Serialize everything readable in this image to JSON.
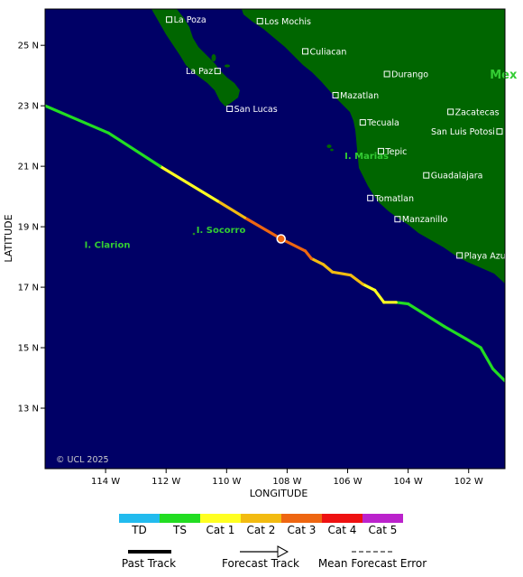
{
  "map": {
    "xlabel": "LONGITUDE",
    "ylabel": "LATITUDE",
    "copyright": "© UCL 2025",
    "lon_range": [
      -116,
      -100.8
    ],
    "lat_range": [
      11,
      26.2
    ],
    "x_ticks": [
      {
        "value": -114,
        "label": "114 W"
      },
      {
        "value": -112,
        "label": "112 W"
      },
      {
        "value": -110,
        "label": "110 W"
      },
      {
        "value": -108,
        "label": "108 W"
      },
      {
        "value": -106,
        "label": "106 W"
      },
      {
        "value": -104,
        "label": "104 W"
      },
      {
        "value": -102,
        "label": "102 W"
      }
    ],
    "y_ticks": [
      {
        "value": 25,
        "label": "25 N"
      },
      {
        "value": 23,
        "label": "23 N"
      },
      {
        "value": 21,
        "label": "21 N"
      },
      {
        "value": 19,
        "label": "19 N"
      },
      {
        "value": 17,
        "label": "17 N"
      },
      {
        "value": 15,
        "label": "15 N"
      },
      {
        "value": 13,
        "label": "13 N"
      }
    ],
    "colors": {
      "ocean": "#000066",
      "land": "#006600",
      "place_label": "#ffffff",
      "island_label": "#33cc33"
    },
    "cities": [
      {
        "name": "La Poza",
        "lon": -111.9,
        "lat": 25.85
      },
      {
        "name": "Los Mochis",
        "lon": -108.9,
        "lat": 25.8
      },
      {
        "name": "Culiacan",
        "lon": -107.4,
        "lat": 24.8
      },
      {
        "name": "La Paz",
        "lon": -110.3,
        "lat": 24.15,
        "align": "left"
      },
      {
        "name": "Durango",
        "lon": -104.7,
        "lat": 24.05
      },
      {
        "name": "Mazatlan",
        "lon": -106.4,
        "lat": 23.35
      },
      {
        "name": "San Lucas",
        "lon": -109.9,
        "lat": 22.9
      },
      {
        "name": "Zacatecas",
        "lon": -102.6,
        "lat": 22.8
      },
      {
        "name": "Tecuala",
        "lon": -105.5,
        "lat": 22.45
      },
      {
        "name": "San Luis Potosi",
        "lon": -100.98,
        "lat": 22.15,
        "align": "left"
      },
      {
        "name": "Tepic",
        "lon": -104.9,
        "lat": 21.5
      },
      {
        "name": "Guadalajara",
        "lon": -103.4,
        "lat": 20.7
      },
      {
        "name": "Tomatlan",
        "lon": -105.25,
        "lat": 19.95
      },
      {
        "name": "Manzanillo",
        "lon": -104.35,
        "lat": 19.25
      },
      {
        "name": "Playa Azul",
        "lon": -102.3,
        "lat": 18.05
      }
    ],
    "islands": [
      {
        "name": "I. Marias",
        "lon": -106.1,
        "lat": 21.25
      },
      {
        "name": "I. Socorro",
        "lon": -111.0,
        "lat": 18.8
      },
      {
        "name": "I. Clarion",
        "lon": -114.7,
        "lat": 18.3
      }
    ],
    "country_label": {
      "name": "Mex",
      "lon": -101.3,
      "lat": 23.9
    }
  },
  "chart_data": {
    "type": "map-track",
    "track": [
      {
        "lon": -100.8,
        "lat": 13.9,
        "category": "TS"
      },
      {
        "lon": -101.2,
        "lat": 14.3,
        "category": "TS"
      },
      {
        "lon": -101.6,
        "lat": 15.0,
        "category": "TS"
      },
      {
        "lon": -102.1,
        "lat": 15.3,
        "category": "TS"
      },
      {
        "lon": -102.8,
        "lat": 15.7,
        "category": "TS"
      },
      {
        "lon": -103.6,
        "lat": 16.2,
        "category": "TS"
      },
      {
        "lon": -104.0,
        "lat": 16.45,
        "category": "TS"
      },
      {
        "lon": -104.4,
        "lat": 16.5,
        "category": "Cat 1"
      },
      {
        "lon": -104.8,
        "lat": 16.5,
        "category": "Cat 1"
      },
      {
        "lon": -105.1,
        "lat": 16.9,
        "category": "Cat 1"
      },
      {
        "lon": -105.5,
        "lat": 17.1,
        "category": "Cat 2"
      },
      {
        "lon": -105.9,
        "lat": 17.4,
        "category": "Cat 2"
      },
      {
        "lon": -106.5,
        "lat": 17.5,
        "category": "Cat 2"
      },
      {
        "lon": -106.8,
        "lat": 17.75,
        "category": "Cat 2"
      },
      {
        "lon": -107.2,
        "lat": 17.95,
        "category": "Cat 3"
      },
      {
        "lon": -107.4,
        "lat": 18.2,
        "category": "Cat 3"
      },
      {
        "lon": -108.2,
        "lat": 18.6,
        "category": "Cat 3"
      },
      {
        "lon": -109.4,
        "lat": 19.3,
        "category": "Cat 2"
      },
      {
        "lon": -110.3,
        "lat": 19.85,
        "category": "Cat 1"
      },
      {
        "lon": -112.2,
        "lat": 21.0,
        "category": "TS"
      },
      {
        "lon": -113.9,
        "lat": 22.1,
        "category": "TS"
      },
      {
        "lon": -116.0,
        "lat": 23.0,
        "category": "TS"
      }
    ],
    "current_position": {
      "lon": -108.2,
      "lat": 18.6
    }
  },
  "legend": {
    "categories": [
      {
        "label": "TD",
        "color": "#22bbee"
      },
      {
        "label": "TS",
        "color": "#22dd22"
      },
      {
        "label": "Cat 1",
        "color": "#ffff22"
      },
      {
        "label": "Cat 2",
        "color": "#f2bb11"
      },
      {
        "label": "Cat 3",
        "color": "#ee6611"
      },
      {
        "label": "Cat 4",
        "color": "#ee1111"
      },
      {
        "label": "Cat 5",
        "color": "#bb22cc"
      }
    ],
    "past_track": "Past Track",
    "forecast_track": "Forecast Track",
    "mean_error": "Mean Forecast Error"
  }
}
